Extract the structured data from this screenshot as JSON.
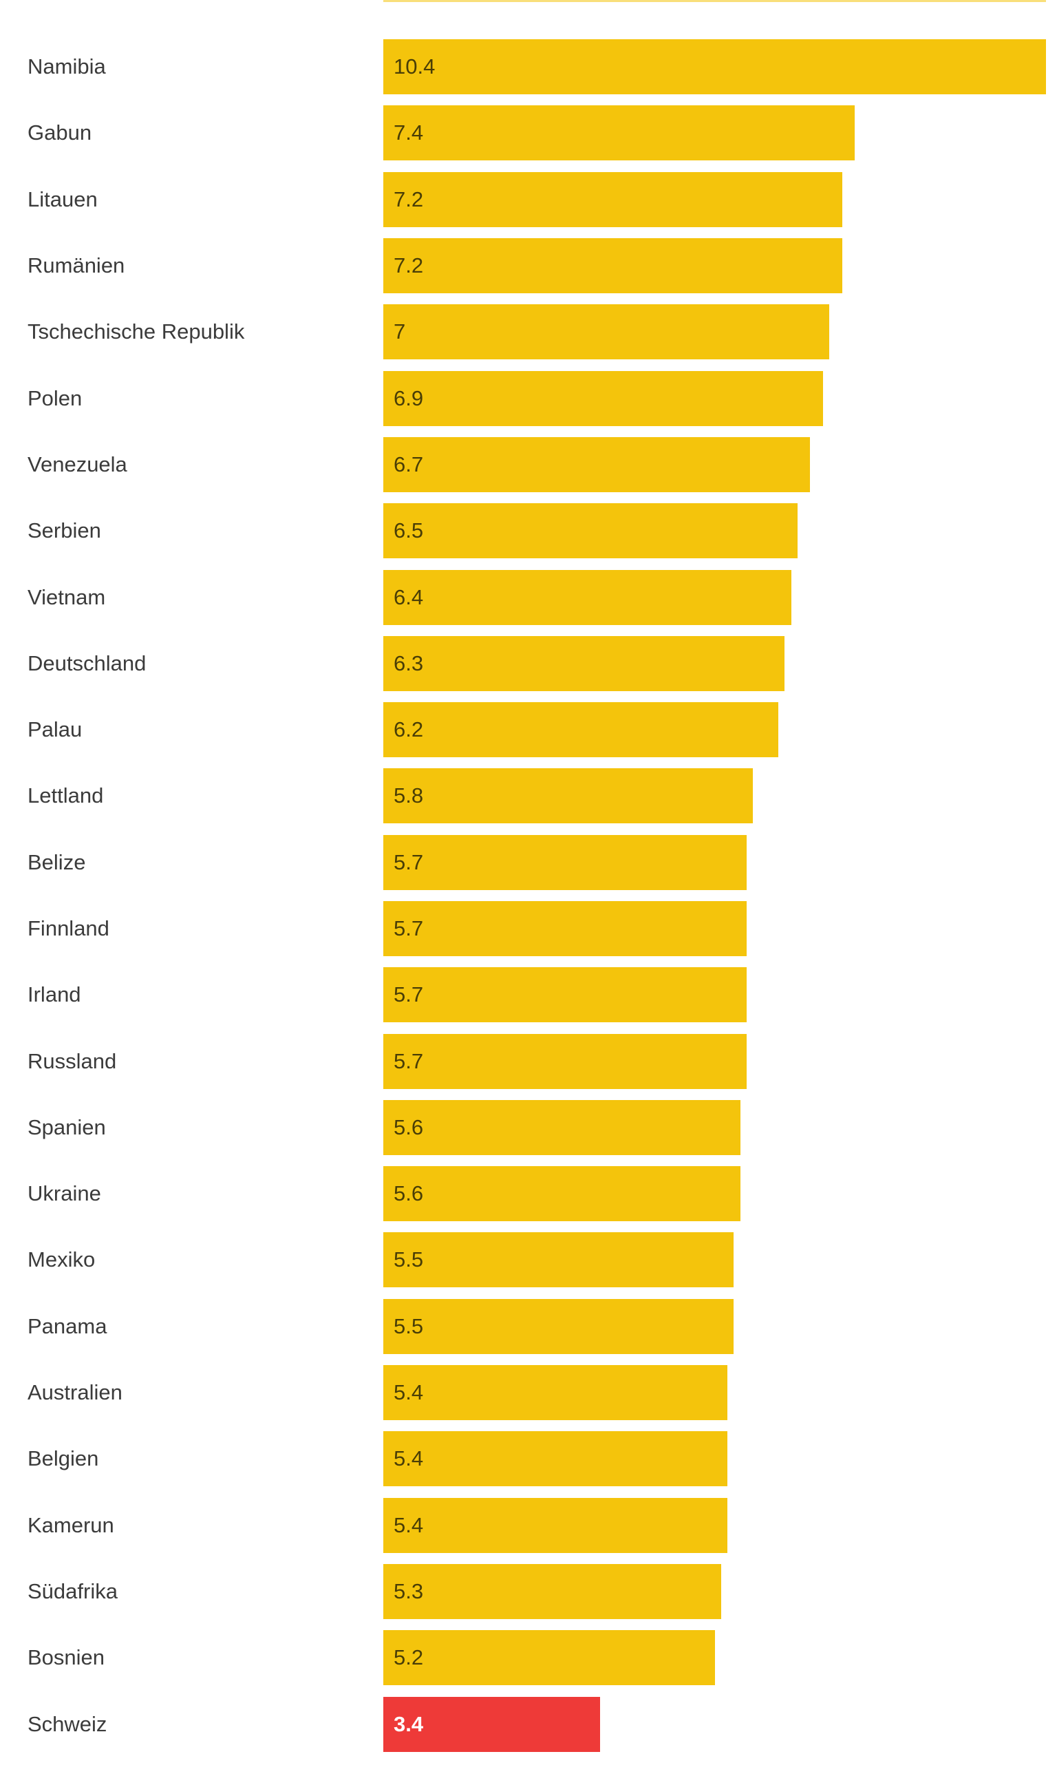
{
  "chart_data": {
    "type": "bar",
    "orientation": "horizontal",
    "title": "",
    "xlabel": "",
    "ylabel": "",
    "xlim": [
      0,
      10.4
    ],
    "grid": false,
    "legend": false,
    "categories": [
      "Namibia",
      "Gabun",
      "Litauen",
      "Rumänien",
      "Tschechische Republik",
      "Polen",
      "Venezuela",
      "Serbien",
      "Vietnam",
      "Deutschland",
      "Palau",
      "Lettland",
      "Belize",
      "Finnland",
      "Irland",
      "Russland",
      "Spanien",
      "Ukraine",
      "Mexiko",
      "Panama",
      "Australien",
      "Belgien",
      "Kamerun",
      "Südafrika",
      "Bosnien",
      "Schweiz"
    ],
    "values": [
      10.4,
      7.4,
      7.2,
      7.2,
      7,
      6.9,
      6.7,
      6.5,
      6.4,
      6.3,
      6.2,
      5.8,
      5.7,
      5.7,
      5.7,
      5.7,
      5.6,
      5.6,
      5.5,
      5.5,
      5.4,
      5.4,
      5.4,
      5.3,
      5.2,
      3.4
    ],
    "value_labels": [
      "10.4",
      "7.4",
      "7.2",
      "7.2",
      "7",
      "6.9",
      "6.7",
      "6.5",
      "6.4",
      "6.3",
      "6.2",
      "5.8",
      "5.7",
      "5.7",
      "5.7",
      "5.7",
      "5.6",
      "5.6",
      "5.5",
      "5.5",
      "5.4",
      "5.4",
      "5.4",
      "5.3",
      "5.2",
      "3.4"
    ],
    "highlight_category": "Schweiz",
    "highlight_index": 25
  },
  "colors": {
    "bar_default": "#f4c40c",
    "bar_highlight": "#ee3a38",
    "label_text": "#3b3b3b",
    "value_text": "#4a3e06",
    "highlight_value_text": "#ffffff",
    "background": "#ffffff"
  },
  "layout_hints": {
    "top_cutoff_bar": {
      "visible": true,
      "color": "#f4c40c"
    }
  }
}
